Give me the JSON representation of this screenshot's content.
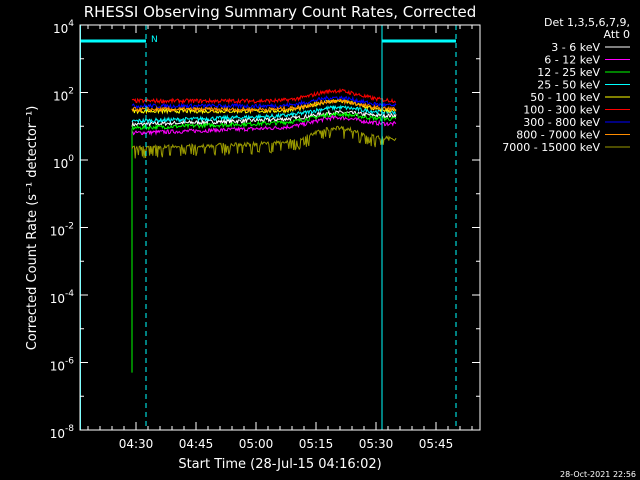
{
  "chart_data": {
    "type": "line",
    "title": "RHESSI Observing Summary Count Rates, Corrected",
    "xlabel": "Start Time (28-Jul-15 04:16:02)",
    "ylabel": "Corrected Count Rate (s⁻¹ detector⁻¹)",
    "ylim_log10": [
      -8,
      4
    ],
    "xlim_minutes_after_0416": [
      0,
      100
    ],
    "x_ticks": [
      {
        "label": "04:30",
        "t": 14
      },
      {
        "label": "04:45",
        "t": 29
      },
      {
        "label": "05:00",
        "t": 44
      },
      {
        "label": "05:15",
        "t": 59
      },
      {
        "label": "05:30",
        "t": 74
      },
      {
        "label": "05:45",
        "t": 89
      }
    ],
    "y_ticks": [
      {
        "base": "10",
        "exp": "4",
        "e": 4
      },
      {
        "base": "10",
        "exp": "2",
        "e": 2
      },
      {
        "base": "10",
        "exp": "0",
        "e": 0
      },
      {
        "base": "10",
        "exp": "-2",
        "e": -2
      },
      {
        "base": "10",
        "exp": "-4",
        "e": -4
      },
      {
        "base": "10",
        "exp": "-6",
        "e": -6
      },
      {
        "base": "10",
        "exp": "-8",
        "e": -8
      }
    ],
    "legend_header": [
      "Det 1,3,5,6,7,9,",
      "Att 0"
    ],
    "night_marker_label": "N",
    "night_periods": [
      [
        0,
        16.5
      ],
      [
        75.5,
        94
      ]
    ],
    "series": [
      {
        "name": "3 - 6 keV",
        "color": "#ffffff",
        "log_base": 1.05,
        "flare_amp": 0.15
      },
      {
        "name": "6 - 12 keV",
        "color": "#ff00ff",
        "log_base": 0.8,
        "flare_amp": 0.25
      },
      {
        "name": "12 - 25 keV",
        "color": "#00ff00",
        "log_base": 0.95,
        "flare_amp": 0.2
      },
      {
        "name": "25 - 50 keV",
        "color": "#00ffff",
        "log_base": 1.15,
        "flare_amp": 0.2
      },
      {
        "name": "50 - 100 keV",
        "color": "#ffff00",
        "log_base": 1.45,
        "flare_amp": 0.3
      },
      {
        "name": "100 - 300 keV",
        "color": "#ff0000",
        "log_base": 1.75,
        "flare_amp": 0.3
      },
      {
        "name": "300 - 800 keV",
        "color": "#0000ff",
        "log_base": 1.6,
        "flare_amp": 0.25
      },
      {
        "name": "800 - 7000 keV",
        "color": "#ff8c00",
        "log_base": 1.5,
        "flare_amp": 0.25
      },
      {
        "name": "7000 - 15000 keV",
        "color": "#9a9a00",
        "log_base": 0.35,
        "flare_amp": 0.4
      }
    ],
    "data_window_minutes": [
      13,
      79
    ],
    "flare_peak_minute": 64,
    "timestamp": "28-Oct-2021 22:56"
  }
}
